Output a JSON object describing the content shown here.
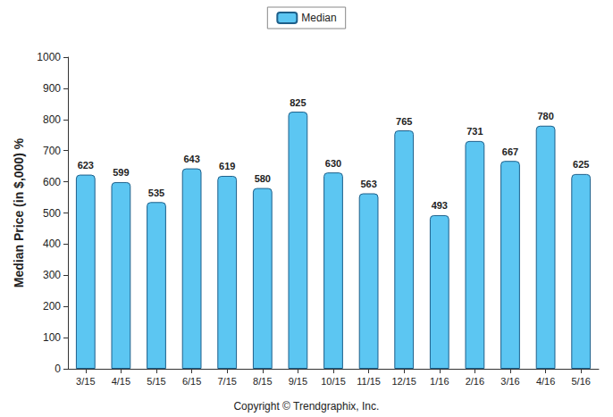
{
  "chart_data": {
    "type": "bar",
    "categories": [
      "3/15",
      "4/15",
      "5/15",
      "6/15",
      "7/15",
      "8/15",
      "9/15",
      "10/15",
      "11/15",
      "12/15",
      "1/16",
      "2/16",
      "3/16",
      "4/16",
      "5/16"
    ],
    "series": [
      {
        "name": "Median",
        "color": "#5cc6f2",
        "values": [
          623,
          599,
          535,
          643,
          619,
          580,
          825,
          630,
          563,
          765,
          493,
          731,
          667,
          780,
          625
        ]
      }
    ],
    "y_label": "Median Price (in $,000) %",
    "ylim": [
      0,
      1000
    ],
    "yticks": [
      0,
      100,
      200,
      300,
      400,
      500,
      600,
      700,
      800,
      900,
      1000
    ],
    "grid": false,
    "legend": "top",
    "data_labels": true,
    "annotations": [
      "Copyright © Trendgraphix, Inc."
    ]
  }
}
